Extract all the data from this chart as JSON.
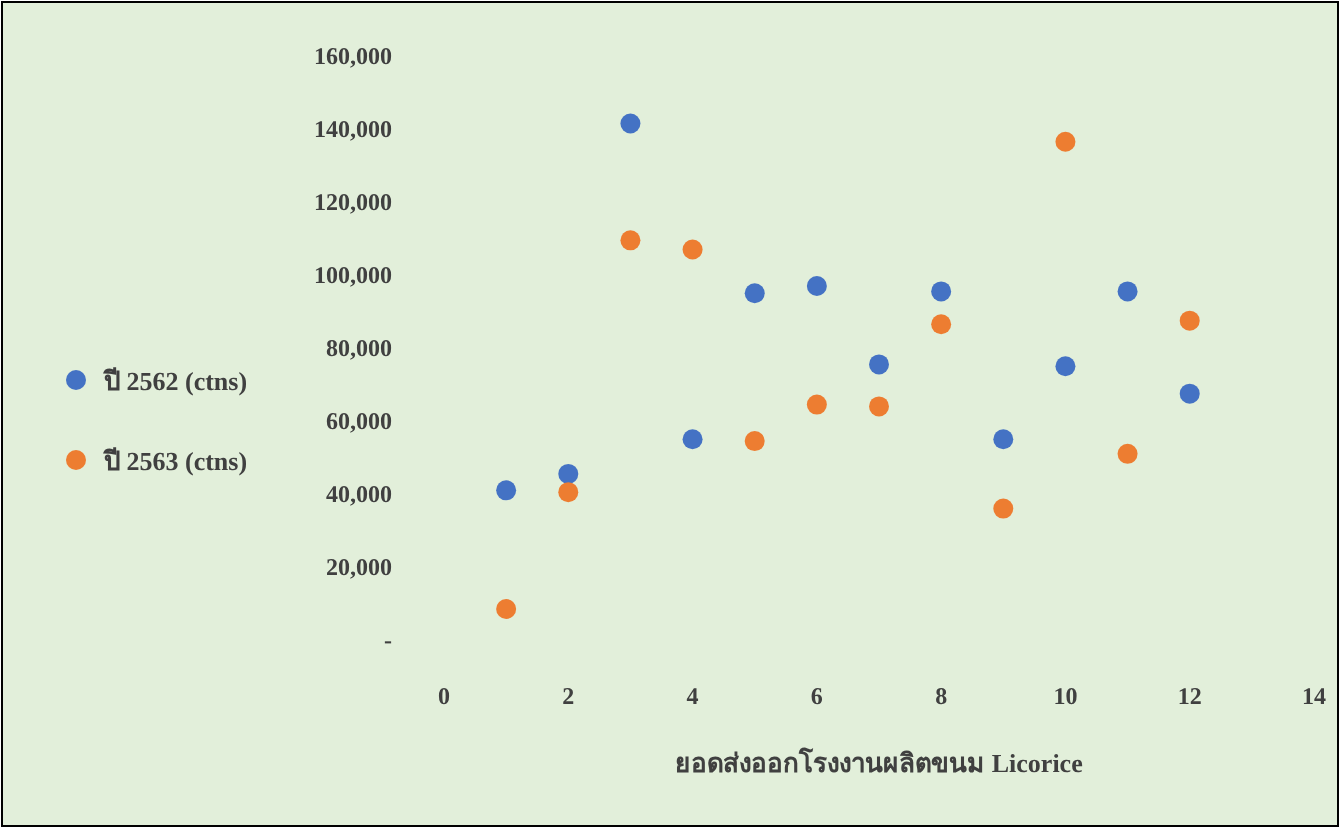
{
  "chart_data": {
    "type": "scatter",
    "xlabel": "ยอดส่งออกโรงงานผลิตขนม Licorice",
    "xlim": [
      0,
      14
    ],
    "xticks": [
      0,
      2,
      4,
      6,
      8,
      10,
      12,
      14
    ],
    "ylim": [
      0,
      160000
    ],
    "yticks": [
      {
        "value": 0,
        "label": "-"
      },
      {
        "value": 20000,
        "label": "20,000"
      },
      {
        "value": 40000,
        "label": "40,000"
      },
      {
        "value": 60000,
        "label": "60,000"
      },
      {
        "value": 80000,
        "label": "80,000"
      },
      {
        "value": 100000,
        "label": "100,000"
      },
      {
        "value": 120000,
        "label": "120,000"
      },
      {
        "value": 140000,
        "label": "140,000"
      },
      {
        "value": 160000,
        "label": "160,000"
      }
    ],
    "legend": "left",
    "marker": "circle",
    "grid": false,
    "series": [
      {
        "name": "ปี 2562 (ctns)",
        "color": "#4472c4",
        "x": [
          1,
          2,
          3,
          4,
          5,
          6,
          7,
          8,
          9,
          10,
          11,
          12
        ],
        "values": [
          41000,
          45500,
          141500,
          55000,
          95000,
          97000,
          75500,
          95500,
          55000,
          75000,
          95500,
          67500
        ]
      },
      {
        "name": "ปี 2563 (ctns)",
        "color": "#ed7d31",
        "x": [
          1,
          2,
          3,
          4,
          5,
          6,
          7,
          8,
          9,
          10,
          11,
          12
        ],
        "values": [
          8500,
          40500,
          109500,
          107000,
          54500,
          64500,
          64000,
          86500,
          36000,
          136500,
          51000,
          87500
        ]
      }
    ]
  }
}
